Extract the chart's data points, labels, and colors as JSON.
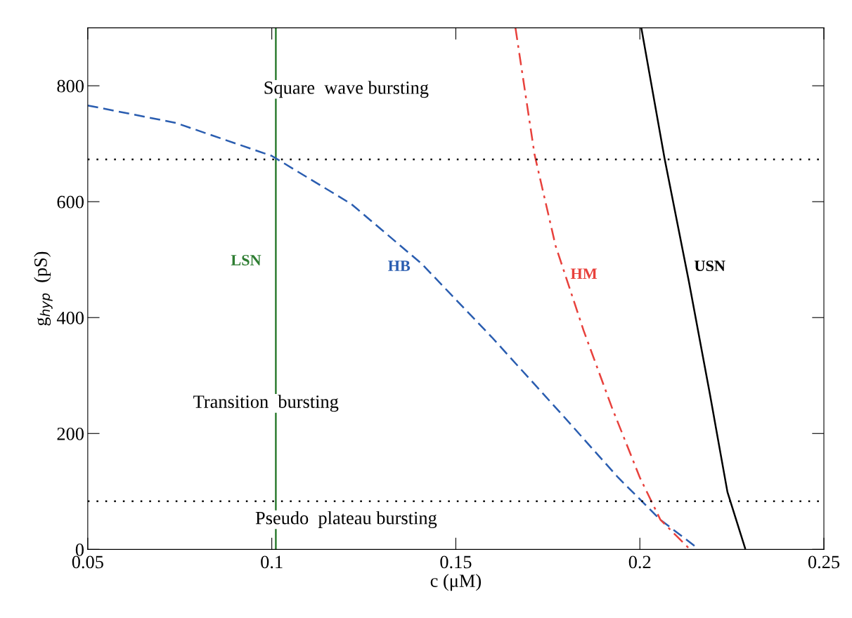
{
  "chart_data": {
    "type": "line",
    "xlabel": "c (μM)",
    "ylabel": "g$_{hyp}$  (pS)",
    "xlim": [
      0.05,
      0.25
    ],
    "ylim": [
      0,
      900
    ],
    "xticks": [
      0.05,
      0.1,
      0.15,
      0.2,
      0.25
    ],
    "yticks": [
      0,
      200,
      400,
      600,
      800
    ],
    "grid": false,
    "legend": false,
    "marker": "none",
    "series": [
      {
        "name": "LSN",
        "color": "#2e7d32",
        "line_style": "solid",
        "x": [
          0.1011,
          0.1011
        ],
        "values": [
          0,
          900
        ]
      },
      {
        "name": "HB",
        "color": "#2a5db0",
        "line_style": "dashed",
        "x": [
          0.05,
          0.0739,
          0.1,
          0.1216,
          0.1407,
          0.1598,
          0.1788,
          0.1941,
          0.2056,
          0.2151
        ],
        "values": [
          766,
          736,
          679,
          596,
          493,
          366,
          233,
          124,
          51,
          5
        ]
      },
      {
        "name": "HM",
        "color": "#e8413c",
        "line_style": "dashdot",
        "x": [
          0.1662,
          0.1714,
          0.1771,
          0.1847,
          0.1924,
          0.2,
          0.2056,
          0.2133
        ],
        "values": [
          900,
          681,
          524,
          378,
          245,
          124,
          51,
          2
        ]
      },
      {
        "name": "USN",
        "color": "#000000",
        "line_style": "solid",
        "x": [
          0.2004,
          0.2067,
          0.2133,
          0.219,
          0.2238,
          0.2286
        ],
        "values": [
          900,
          675,
          463,
          269,
          99,
          2
        ]
      }
    ],
    "ref_lines": [
      {
        "axis": "y",
        "value": 673,
        "color": "#000000",
        "line_style": "dotted"
      },
      {
        "axis": "y",
        "value": 83,
        "color": "#000000",
        "line_style": "dotted"
      }
    ],
    "annotations": [
      "Square  wave bursting",
      "Transition  bursting",
      "Pseudo  plateau bursting"
    ]
  }
}
